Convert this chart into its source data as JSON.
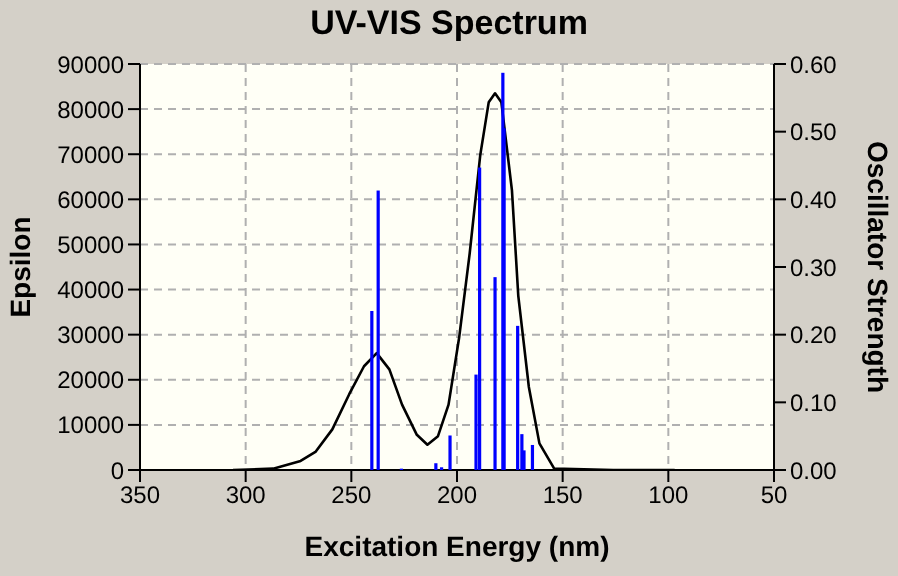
{
  "chart_data": {
    "type": "line",
    "title": "UV-VIS Spectrum",
    "xlabel": "Excitation Energy (nm)",
    "ylabel": "Epsilon",
    "y2label": "Oscillator Strength",
    "xlim": [
      350,
      50
    ],
    "xticks": [
      350,
      300,
      250,
      200,
      150,
      100,
      50
    ],
    "ylim": [
      0,
      90000
    ],
    "yticks": [
      0,
      10000,
      20000,
      30000,
      40000,
      50000,
      60000,
      70000,
      80000,
      90000
    ],
    "y2lim": [
      0,
      0.6
    ],
    "y2ticks": [
      {
        "value": 0,
        "label": "0.00"
      },
      {
        "value": 0.1,
        "label": "0.10"
      },
      {
        "value": 0.2,
        "label": "0.20"
      },
      {
        "value": 0.3,
        "label": "0.30"
      },
      {
        "value": 0.4,
        "label": "0.40"
      },
      {
        "value": 0.5,
        "label": "0.50"
      },
      {
        "value": 0.6,
        "label": "0.60"
      }
    ],
    "grid": true,
    "legend": false,
    "marker": "none",
    "line_style": "solid",
    "series": [
      {
        "color": "#000000",
        "x": [
          306,
          287,
          274,
          267,
          259,
          251,
          244,
          238,
          232,
          226,
          219,
          214,
          209,
          204,
          199,
          194,
          189,
          185,
          182,
          179,
          174,
          171,
          166,
          161,
          154,
          126,
          97
        ],
        "values": [
          0,
          300,
          2000,
          4000,
          9000,
          16800,
          23000,
          25900,
          22300,
          14500,
          7800,
          5600,
          7500,
          14500,
          29300,
          48000,
          69800,
          81500,
          83500,
          81500,
          62000,
          38600,
          18400,
          5900,
          300,
          0,
          0
        ]
      },
      {
        "type": "bar",
        "axis": "y2",
        "color": "#0000ff",
        "x": [
          240.3,
          237.3,
          226.3,
          210,
          207.3,
          203.3,
          191,
          189.3,
          182,
          178.3,
          177.7,
          171.3,
          169.3,
          168.3,
          164.3
        ],
        "values": [
          0.235,
          0.413,
          0.002,
          0.01,
          0.004,
          0.051,
          0.141,
          0.447,
          0.285,
          0.587,
          0.505,
          0.213,
          0.053,
          0.029,
          0.037
        ]
      }
    ]
  }
}
